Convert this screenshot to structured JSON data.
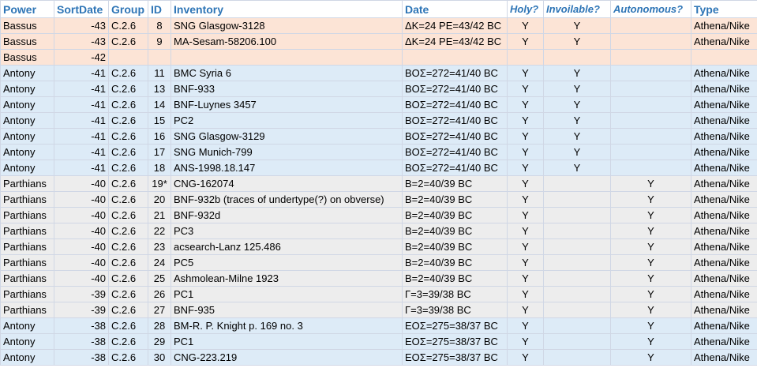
{
  "table": {
    "header": [
      "Power",
      "SortDate",
      "Group",
      "ID",
      "Inventory",
      "Date",
      "Holy?",
      "Invoilable?",
      "Autonomous?",
      "Type"
    ],
    "row_colors": {
      "Bassus": "#fce4d6",
      "Antony": "#ddebf7",
      "Parthians": "#ededed"
    },
    "rows": [
      [
        "Bassus",
        "-43",
        "C.2.6",
        "8",
        "SNG Glasgow-3128",
        "ΔK=24 PE=43/42 BC",
        "Y",
        "Y",
        null,
        "Athena/Nike"
      ],
      [
        "Bassus",
        "-43",
        "C.2.6",
        "9",
        "MA-Sesam-58206.100",
        "ΔK=24 PE=43/42 BC",
        "Y",
        "Y",
        null,
        "Athena/Nike"
      ],
      [
        "Bassus",
        "-42",
        null,
        null,
        null,
        null,
        null,
        null,
        null,
        null
      ],
      [
        "Antony",
        "-41",
        "C.2.6",
        "11",
        "BMC Syria 6",
        "BOΣ=272=41/40 BC",
        "Y",
        "Y",
        null,
        "Athena/Nike"
      ],
      [
        "Antony",
        "-41",
        "C.2.6",
        "13",
        "BNF-933",
        "BOΣ=272=41/40 BC",
        "Y",
        "Y",
        null,
        "Athena/Nike"
      ],
      [
        "Antony",
        "-41",
        "C.2.6",
        "14",
        "BNF-Luynes 3457",
        "BOΣ=272=41/40 BC",
        "Y",
        "Y",
        null,
        "Athena/Nike"
      ],
      [
        "Antony",
        "-41",
        "C.2.6",
        "15",
        "PC2",
        "BOΣ=272=41/40 BC",
        "Y",
        "Y",
        null,
        "Athena/Nike"
      ],
      [
        "Antony",
        "-41",
        "C.2.6",
        "16",
        "SNG Glasgow-3129",
        "BOΣ=272=41/40 BC",
        "Y",
        "Y",
        null,
        "Athena/Nike"
      ],
      [
        "Antony",
        "-41",
        "C.2.6",
        "17",
        "SNG Munich-799",
        "BOΣ=272=41/40 BC",
        "Y",
        "Y",
        null,
        "Athena/Nike"
      ],
      [
        "Antony",
        "-41",
        "C.2.6",
        "18",
        "ANS-1998.18.147",
        "BOΣ=272=41/40 BC",
        "Y",
        "Y",
        null,
        "Athena/Nike"
      ],
      [
        "Parthians",
        "-40",
        "C.2.6",
        "19*",
        "CNG-162074",
        "B=2=40/39 BC",
        "Y",
        null,
        "Y",
        "Athena/Nike"
      ],
      [
        "Parthians",
        "-40",
        "C.2.6",
        "20",
        "BNF-932b (traces of undertype(?) on obverse)",
        "B=2=40/39 BC",
        "Y",
        null,
        "Y",
        "Athena/Nike"
      ],
      [
        "Parthians",
        "-40",
        "C.2.6",
        "21",
        "BNF-932d",
        "B=2=40/39 BC",
        "Y",
        null,
        "Y",
        "Athena/Nike"
      ],
      [
        "Parthians",
        "-40",
        "C.2.6",
        "22",
        "PC3",
        "B=2=40/39 BC",
        "Y",
        null,
        "Y",
        "Athena/Nike"
      ],
      [
        "Parthians",
        "-40",
        "C.2.6",
        "23",
        "acsearch-Lanz 125.486",
        "B=2=40/39 BC",
        "Y",
        null,
        "Y",
        "Athena/Nike"
      ],
      [
        "Parthians",
        "-40",
        "C.2.6",
        "24",
        "PC5",
        "B=2=40/39 BC",
        "Y",
        null,
        "Y",
        "Athena/Nike"
      ],
      [
        "Parthians",
        "-40",
        "C.2.6",
        "25",
        "Ashmolean-Milne 1923",
        "B=2=40/39 BC",
        "Y",
        null,
        "Y",
        "Athena/Nike"
      ],
      [
        "Parthians",
        "-39",
        "C.2.6",
        "26",
        "PC1",
        "Γ=3=39/38 BC",
        "Y",
        null,
        "Y",
        "Athena/Nike"
      ],
      [
        "Parthians",
        "-39",
        "C.2.6",
        "27",
        "BNF-935",
        "Γ=3=39/38 BC",
        "Y",
        null,
        "Y",
        "Athena/Nike"
      ],
      [
        "Antony",
        "-38",
        "C.2.6",
        "28",
        "BM-R. P. Knight p. 169 no. 3",
        "EOΣ=275=38/37 BC",
        "Y",
        null,
        "Y",
        "Athena/Nike"
      ],
      [
        "Antony",
        "-38",
        "C.2.6",
        "29",
        "PC1",
        "EOΣ=275=38/37 BC",
        "Y",
        null,
        "Y",
        "Athena/Nike"
      ],
      [
        "Antony",
        "-38",
        "C.2.6",
        "30",
        "CNG-223.219",
        "EOΣ=275=38/37 BC",
        "Y",
        null,
        "Y",
        "Athena/Nike"
      ]
    ]
  }
}
